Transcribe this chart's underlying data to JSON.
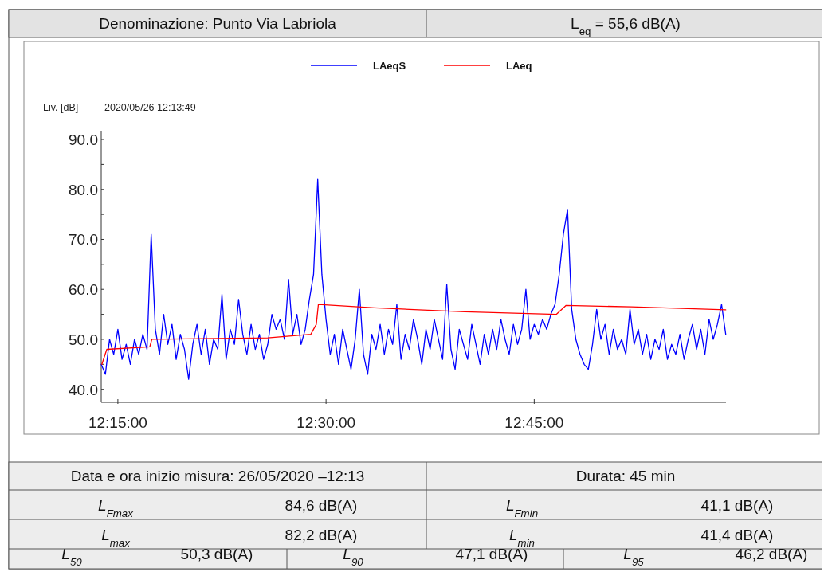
{
  "chart_data": {
    "type": "line",
    "title": "Denominazione: Punto Via Labriola",
    "subtitle": "L$_{eq}$ = 55,6 dB(A)",
    "ylabel": "Liv. [dB]",
    "annotations": [
      "2020/05/26 12:13:49",
      "Data e ora inizio misura: 26/05/2020 –12:13",
      "Durata: 45 min",
      "L$_{Fmax}$",
      "84,6 dB(A)",
      "L$_{Fmin}$",
      "41,1 dB(A)",
      "L$_{max}$",
      "82,2 dB(A)",
      "L$_{min}$",
      "41,4 dB(A)",
      "L$_{50}$",
      "50,3 dB(A)",
      "L$_{90}$",
      "47,1 dB(A)",
      "L$_{95}$",
      "46,2 dB(A)"
    ],
    "legend": "top",
    "xlim": [
      12.23,
      12.9803
    ],
    "xticks": [
      {
        "value": 12.25,
        "label": "12:15:00"
      },
      {
        "value": 12.5,
        "label": "12:30:00"
      },
      {
        "value": 12.75,
        "label": "12:45:00"
      }
    ],
    "ylim": [
      37.4,
      91.6
    ],
    "yticks": [
      {
        "value": 40,
        "label": "40.0"
      },
      {
        "value": 45,
        "label": null
      },
      {
        "value": 50,
        "label": "50.0"
      },
      {
        "value": 55,
        "label": null
      },
      {
        "value": 60,
        "label": "60.0"
      },
      {
        "value": 65,
        "label": null
      },
      {
        "value": 70,
        "label": "70.0"
      },
      {
        "value": 75,
        "label": null
      },
      {
        "value": 80,
        "label": "80.0"
      },
      {
        "value": 85,
        "label": null
      },
      {
        "value": 90,
        "label": "90.0"
      }
    ],
    "x": [
      12.23,
      12.235,
      12.24,
      12.245,
      12.25,
      12.255,
      12.26,
      12.265,
      12.27,
      12.275,
      12.28,
      12.285,
      12.29,
      12.295,
      12.3,
      12.305,
      12.31,
      12.315,
      12.32,
      12.325,
      12.33,
      12.335,
      12.34,
      12.345,
      12.35,
      12.355,
      12.36,
      12.365,
      12.37,
      12.375,
      12.38,
      12.385,
      12.39,
      12.395,
      12.4,
      12.405,
      12.41,
      12.415,
      12.42,
      12.425,
      12.43,
      12.435,
      12.44,
      12.445,
      12.45,
      12.455,
      12.46,
      12.465,
      12.47,
      12.475,
      12.48,
      12.485,
      12.49,
      12.495,
      12.5,
      12.505,
      12.51,
      12.515,
      12.52,
      12.525,
      12.53,
      12.535,
      12.54,
      12.545,
      12.55,
      12.555,
      12.56,
      12.565,
      12.57,
      12.575,
      12.58,
      12.585,
      12.59,
      12.595,
      12.6,
      12.605,
      12.61,
      12.615,
      12.62,
      12.625,
      12.63,
      12.635,
      12.64,
      12.645,
      12.65,
      12.655,
      12.66,
      12.665,
      12.67,
      12.675,
      12.68,
      12.685,
      12.69,
      12.695,
      12.7,
      12.705,
      12.71,
      12.715,
      12.72,
      12.725,
      12.73,
      12.735,
      12.74,
      12.745,
      12.75,
      12.755,
      12.76,
      12.765,
      12.77,
      12.775,
      12.78,
      12.785,
      12.79,
      12.795,
      12.8,
      12.805,
      12.81,
      12.815,
      12.82,
      12.825,
      12.83,
      12.835,
      12.84,
      12.845,
      12.85,
      12.855,
      12.86,
      12.865,
      12.87,
      12.875,
      12.88,
      12.885,
      12.89,
      12.895,
      12.9,
      12.905,
      12.91,
      12.915,
      12.92,
      12.925,
      12.93,
      12.935,
      12.94,
      12.945,
      12.95,
      12.955,
      12.96,
      12.965,
      12.97,
      12.975,
      12.98
    ],
    "series": [
      {
        "name": "LAeqS",
        "color": "#0000ff",
        "values": [
          45,
          43,
          50,
          47,
          52,
          46,
          49,
          45,
          50,
          47,
          51,
          48,
          71,
          52,
          47,
          55,
          49,
          53,
          46,
          51,
          48,
          42,
          49,
          53,
          47,
          52,
          45,
          50,
          48,
          59,
          46,
          52,
          49,
          58,
          51,
          47,
          53,
          48,
          51,
          46,
          49,
          55,
          52,
          54,
          50,
          62,
          51,
          55,
          49,
          52,
          58,
          63,
          82,
          63,
          54,
          47,
          51,
          45,
          52,
          48,
          44,
          50,
          60,
          47,
          43,
          51,
          48,
          53,
          47,
          52,
          49,
          57,
          46,
          51,
          48,
          54,
          50,
          45,
          52,
          48,
          54,
          50,
          46,
          61,
          48,
          44,
          52,
          49,
          46,
          53,
          49,
          45,
          51,
          47,
          52,
          48,
          54,
          50,
          47,
          53,
          49,
          52,
          60,
          50,
          53,
          51,
          54,
          52,
          55,
          57,
          63,
          71,
          76,
          56,
          50,
          47,
          45,
          44,
          49,
          56,
          50,
          53,
          47,
          52,
          48,
          50,
          47,
          56,
          49,
          52,
          47,
          51,
          46,
          50,
          48,
          52,
          46,
          49,
          47,
          51,
          46,
          50,
          53,
          48,
          52,
          47,
          54,
          50,
          53,
          57,
          51
        ]
      },
      {
        "name": "LAeq",
        "color": "#ff0000",
        "x": [
          12.2308,
          12.2367,
          12.2883,
          12.2908,
          12.43,
          12.4817,
          12.4883,
          12.4908,
          12.5583,
          12.6667,
          12.7767,
          12.7883,
          12.8667,
          12.98
        ],
        "values": [
          45,
          48,
          48.5,
          50,
          50.3,
          51,
          53,
          57,
          56.3,
          55.5,
          55,
          56.8,
          56.5,
          55.9
        ]
      }
    ]
  }
}
